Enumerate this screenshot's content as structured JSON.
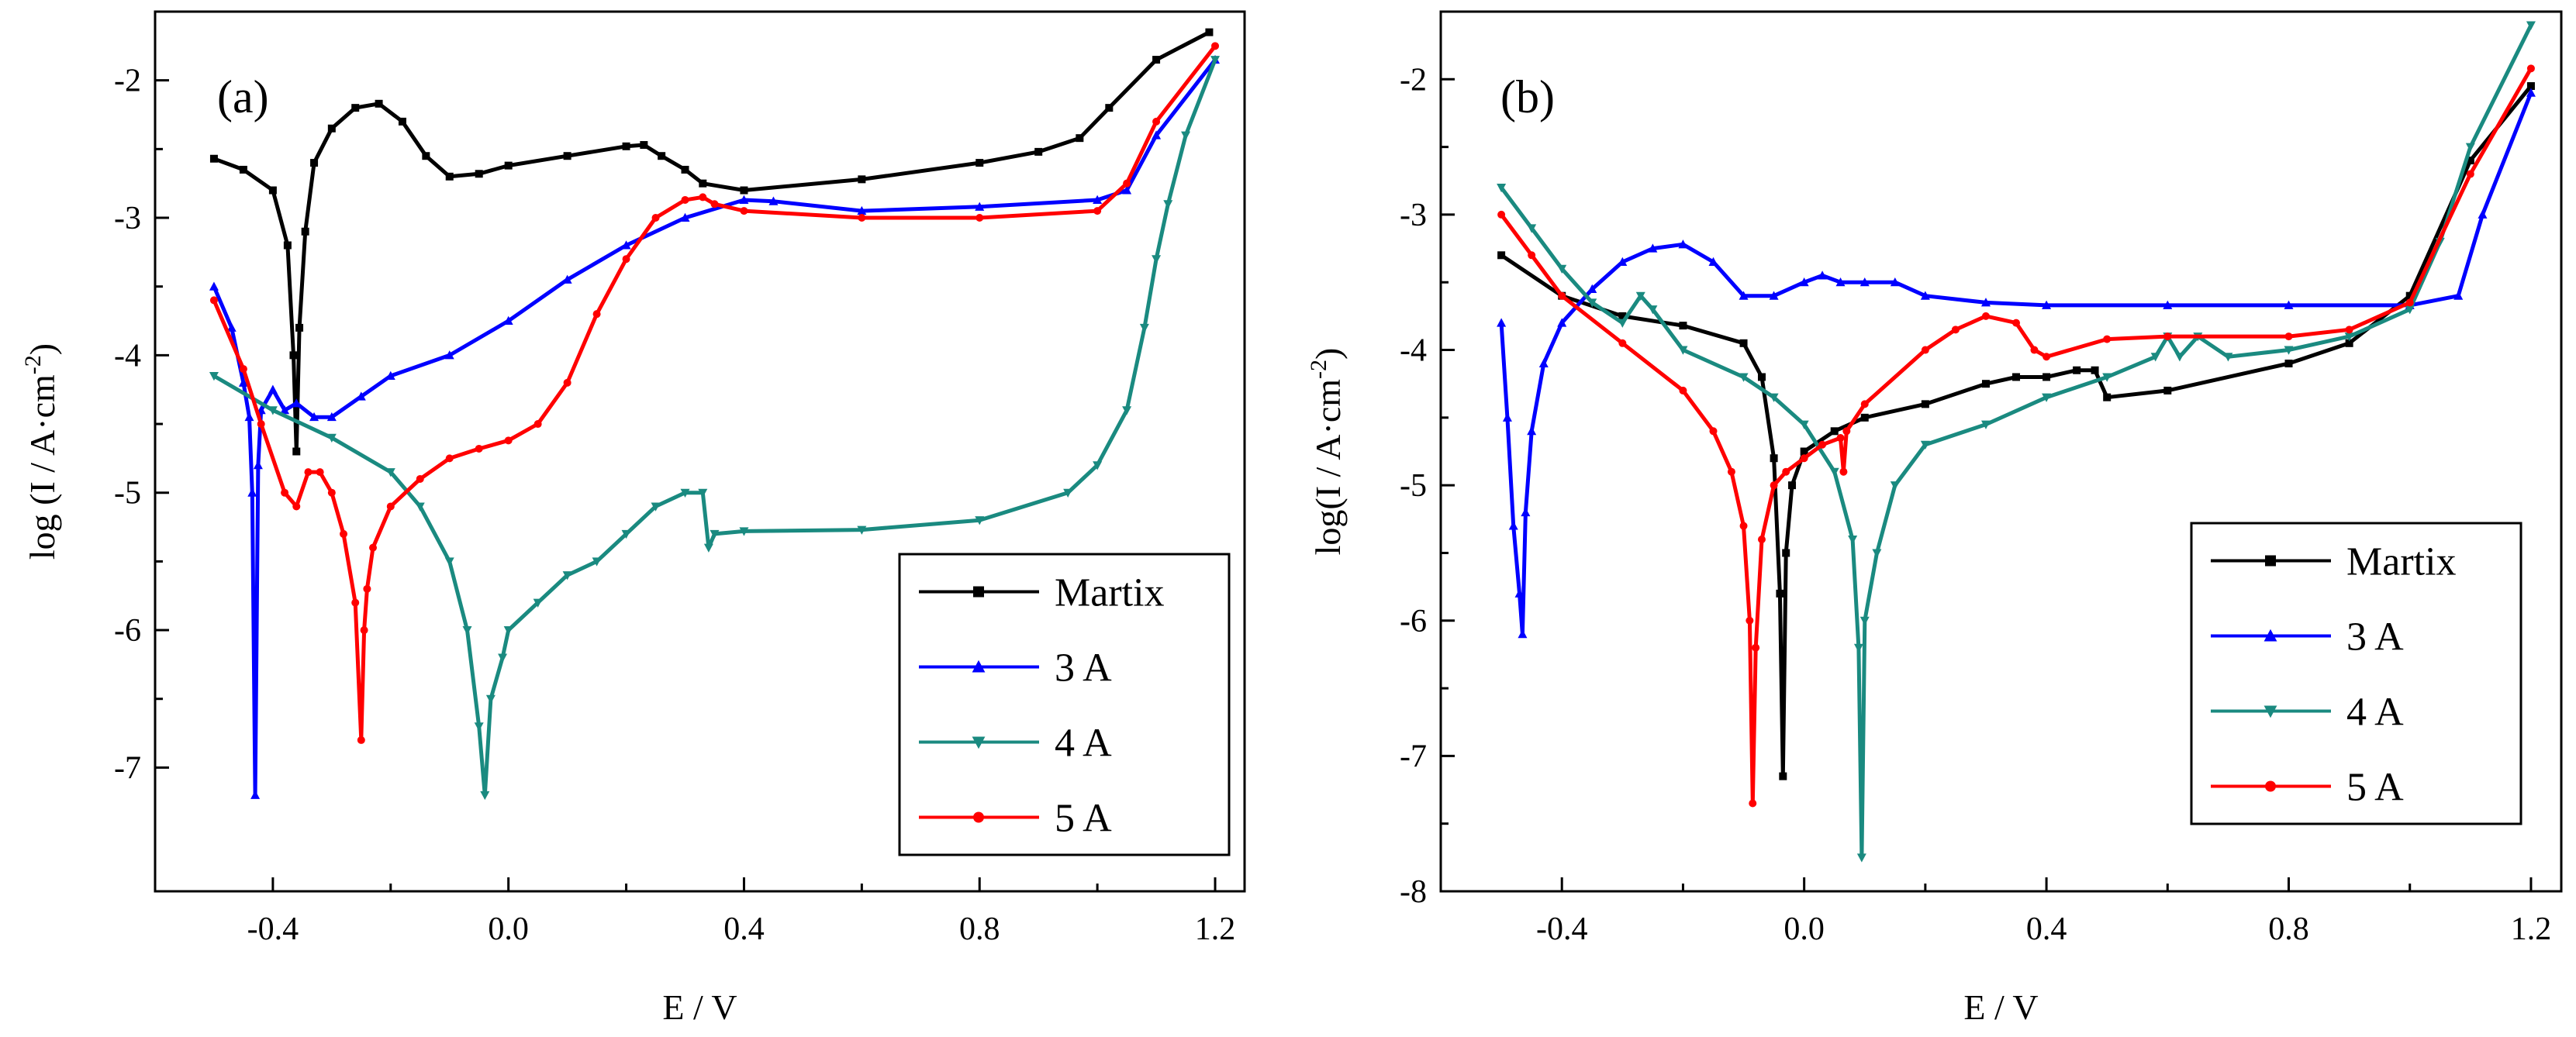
{
  "chart_data": [
    {
      "type": "line",
      "panel_label": "(a)",
      "xlabel": "E / V",
      "ylabel_main": "log (I / A·cm",
      "ylabel_sup": "-2",
      "ylabel_end": ")",
      "xlim": [
        -0.6,
        1.25
      ],
      "ylim": [
        -7.9,
        -1.5
      ],
      "xticks": [
        -0.4,
        0.0,
        0.4,
        0.8,
        1.2
      ],
      "xtick_labels": [
        "-0.4",
        "0.0",
        "0.4",
        "0.8",
        "1.2"
      ],
      "yticks": [
        -2,
        -3,
        -4,
        -5,
        -6,
        -7
      ],
      "ytick_labels": [
        "-2",
        "-3",
        "-4",
        "-5",
        "-6",
        "-7"
      ],
      "legend_position": "bottom-right",
      "series": [
        {
          "name": "Martix",
          "color": "#000000",
          "marker": "square",
          "x": [
            -0.5,
            -0.45,
            -0.4,
            -0.375,
            -0.365,
            -0.36,
            -0.355,
            -0.345,
            -0.33,
            -0.3,
            -0.26,
            -0.22,
            -0.18,
            -0.14,
            -0.1,
            -0.05,
            0.0,
            0.1,
            0.2,
            0.23,
            0.26,
            0.3,
            0.33,
            0.4,
            0.6,
            0.8,
            0.9,
            0.97,
            1.02,
            1.1,
            1.19
          ],
          "y": [
            -2.57,
            -2.65,
            -2.8,
            -3.2,
            -4.0,
            -4.7,
            -3.8,
            -3.1,
            -2.6,
            -2.35,
            -2.2,
            -2.17,
            -2.3,
            -2.55,
            -2.7,
            -2.68,
            -2.62,
            -2.55,
            -2.48,
            -2.47,
            -2.55,
            -2.65,
            -2.75,
            -2.8,
            -2.72,
            -2.6,
            -2.52,
            -2.42,
            -2.2,
            -1.85,
            -1.65
          ]
        },
        {
          "name": "3 A",
          "color": "#0000ff",
          "marker": "triangle-up",
          "x": [
            -0.5,
            -0.47,
            -0.45,
            -0.44,
            -0.435,
            -0.43,
            -0.425,
            -0.42,
            -0.4,
            -0.38,
            -0.36,
            -0.33,
            -0.3,
            -0.25,
            -0.2,
            -0.1,
            0.0,
            0.1,
            0.2,
            0.3,
            0.4,
            0.45,
            0.6,
            0.8,
            1.0,
            1.05,
            1.1,
            1.2
          ],
          "y": [
            -3.5,
            -3.8,
            -4.2,
            -4.45,
            -5.0,
            -7.2,
            -4.8,
            -4.4,
            -4.25,
            -4.4,
            -4.35,
            -4.45,
            -4.45,
            -4.3,
            -4.15,
            -4.0,
            -3.75,
            -3.45,
            -3.2,
            -3.0,
            -2.87,
            -2.88,
            -2.95,
            -2.92,
            -2.87,
            -2.8,
            -2.4,
            -1.85
          ]
        },
        {
          "name": "4 A",
          "color": "#1a8a80",
          "marker": "triangle-down",
          "x": [
            -0.5,
            -0.4,
            -0.3,
            -0.2,
            -0.15,
            -0.1,
            -0.07,
            -0.05,
            -0.04,
            -0.03,
            -0.01,
            0.0,
            0.05,
            0.1,
            0.15,
            0.2,
            0.25,
            0.3,
            0.33,
            0.34,
            0.35,
            0.4,
            0.6,
            0.8,
            0.95,
            1.0,
            1.05,
            1.08,
            1.1,
            1.12,
            1.15,
            1.2
          ],
          "y": [
            -4.15,
            -4.4,
            -4.6,
            -4.85,
            -5.1,
            -5.5,
            -6.0,
            -6.7,
            -7.2,
            -6.5,
            -6.2,
            -6.0,
            -5.8,
            -5.6,
            -5.5,
            -5.3,
            -5.1,
            -5.0,
            -5.0,
            -5.4,
            -5.3,
            -5.28,
            -5.27,
            -5.2,
            -5.0,
            -4.8,
            -4.4,
            -3.8,
            -3.3,
            -2.9,
            -2.4,
            -1.85
          ]
        },
        {
          "name": "5 A",
          "color": "#ff0000",
          "marker": "circle",
          "x": [
            -0.5,
            -0.45,
            -0.42,
            -0.38,
            -0.36,
            -0.34,
            -0.32,
            -0.3,
            -0.28,
            -0.26,
            -0.25,
            -0.245,
            -0.24,
            -0.23,
            -0.2,
            -0.15,
            -0.1,
            -0.05,
            0.0,
            0.05,
            0.1,
            0.15,
            0.2,
            0.25,
            0.3,
            0.33,
            0.35,
            0.4,
            0.6,
            0.8,
            1.0,
            1.05,
            1.1,
            1.2
          ],
          "y": [
            -3.6,
            -4.1,
            -4.5,
            -5.0,
            -5.1,
            -4.85,
            -4.85,
            -5.0,
            -5.3,
            -5.8,
            -6.8,
            -6.0,
            -5.7,
            -5.4,
            -5.1,
            -4.9,
            -4.75,
            -4.68,
            -4.62,
            -4.5,
            -4.2,
            -3.7,
            -3.3,
            -3.0,
            -2.87,
            -2.85,
            -2.9,
            -2.95,
            -3.0,
            -3.0,
            -2.95,
            -2.75,
            -2.3,
            -1.75
          ]
        }
      ]
    },
    {
      "type": "line",
      "panel_label": "(b)",
      "xlabel": "E / V",
      "ylabel_main": "log(I / A·cm",
      "ylabel_sup": "-2",
      "ylabel_end": ")",
      "xlim": [
        -0.6,
        1.25
      ],
      "ylim": [
        -8,
        -1.5
      ],
      "xticks": [
        -0.4,
        0.0,
        0.4,
        0.8,
        1.2
      ],
      "xtick_labels": [
        "-0.4",
        "0.0",
        "0.4",
        "0.8",
        "1.2"
      ],
      "yticks": [
        -2,
        -3,
        -4,
        -5,
        -6,
        -7,
        -8
      ],
      "ytick_labels": [
        "-2",
        "-3",
        "-4",
        "-5",
        "-6",
        "-7",
        "-8"
      ],
      "legend_position": "middle-right",
      "series": [
        {
          "name": "Martix",
          "color": "#000000",
          "marker": "square",
          "x": [
            -0.5,
            -0.4,
            -0.3,
            -0.2,
            -0.1,
            -0.07,
            -0.05,
            -0.04,
            -0.035,
            -0.03,
            -0.02,
            0.0,
            0.05,
            0.1,
            0.2,
            0.3,
            0.35,
            0.4,
            0.45,
            0.48,
            0.5,
            0.6,
            0.8,
            0.9,
            1.0,
            1.1,
            1.2
          ],
          "y": [
            -3.3,
            -3.6,
            -3.75,
            -3.82,
            -3.95,
            -4.2,
            -4.8,
            -5.8,
            -7.15,
            -5.5,
            -5.0,
            -4.75,
            -4.6,
            -4.5,
            -4.4,
            -4.25,
            -4.2,
            -4.2,
            -4.15,
            -4.15,
            -4.35,
            -4.3,
            -4.1,
            -3.95,
            -3.6,
            -2.6,
            -2.05
          ]
        },
        {
          "name": "3 A",
          "color": "#0000ff",
          "marker": "triangle-up",
          "x": [
            -0.5,
            -0.49,
            -0.48,
            -0.47,
            -0.465,
            -0.46,
            -0.45,
            -0.43,
            -0.4,
            -0.35,
            -0.3,
            -0.25,
            -0.2,
            -0.15,
            -0.1,
            -0.05,
            0.0,
            0.03,
            0.06,
            0.1,
            0.15,
            0.2,
            0.3,
            0.4,
            0.6,
            0.8,
            1.0,
            1.08,
            1.12,
            1.2
          ],
          "y": [
            -3.8,
            -4.5,
            -5.3,
            -5.8,
            -6.1,
            -5.2,
            -4.6,
            -4.1,
            -3.8,
            -3.55,
            -3.35,
            -3.25,
            -3.22,
            -3.35,
            -3.6,
            -3.6,
            -3.5,
            -3.45,
            -3.5,
            -3.5,
            -3.5,
            -3.6,
            -3.65,
            -3.67,
            -3.67,
            -3.67,
            -3.67,
            -3.6,
            -3.0,
            -2.1
          ]
        },
        {
          "name": "4 A",
          "color": "#1a8a80",
          "marker": "triangle-down",
          "x": [
            -0.5,
            -0.45,
            -0.4,
            -0.35,
            -0.3,
            -0.27,
            -0.25,
            -0.2,
            -0.1,
            -0.05,
            0.0,
            0.05,
            0.08,
            0.09,
            0.095,
            0.1,
            0.12,
            0.15,
            0.2,
            0.3,
            0.4,
            0.5,
            0.58,
            0.6,
            0.62,
            0.65,
            0.7,
            0.8,
            0.9,
            1.0,
            1.05,
            1.1,
            1.2
          ],
          "y": [
            -2.8,
            -3.1,
            -3.4,
            -3.65,
            -3.8,
            -3.6,
            -3.7,
            -4.0,
            -4.2,
            -4.35,
            -4.55,
            -4.9,
            -5.4,
            -6.2,
            -7.75,
            -6.0,
            -5.5,
            -5.0,
            -4.7,
            -4.55,
            -4.35,
            -4.2,
            -4.05,
            -3.9,
            -4.05,
            -3.9,
            -4.05,
            -4.0,
            -3.9,
            -3.7,
            -3.2,
            -2.5,
            -1.6
          ]
        },
        {
          "name": "5 A",
          "color": "#ff0000",
          "marker": "circle",
          "x": [
            -0.5,
            -0.45,
            -0.4,
            -0.3,
            -0.2,
            -0.15,
            -0.12,
            -0.1,
            -0.09,
            -0.085,
            -0.08,
            -0.07,
            -0.05,
            -0.03,
            0.0,
            0.03,
            0.06,
            0.065,
            0.07,
            0.1,
            0.2,
            0.25,
            0.3,
            0.35,
            0.38,
            0.4,
            0.5,
            0.6,
            0.8,
            0.9,
            1.0,
            1.1,
            1.2
          ],
          "y": [
            -3.0,
            -3.3,
            -3.6,
            -3.95,
            -4.3,
            -4.6,
            -4.9,
            -5.3,
            -6.0,
            -7.35,
            -6.2,
            -5.4,
            -5.0,
            -4.9,
            -4.8,
            -4.7,
            -4.65,
            -4.9,
            -4.6,
            -4.4,
            -4.0,
            -3.85,
            -3.75,
            -3.8,
            -4.0,
            -4.05,
            -3.92,
            -3.9,
            -3.9,
            -3.85,
            -3.65,
            -2.7,
            -1.92
          ]
        }
      ]
    }
  ]
}
